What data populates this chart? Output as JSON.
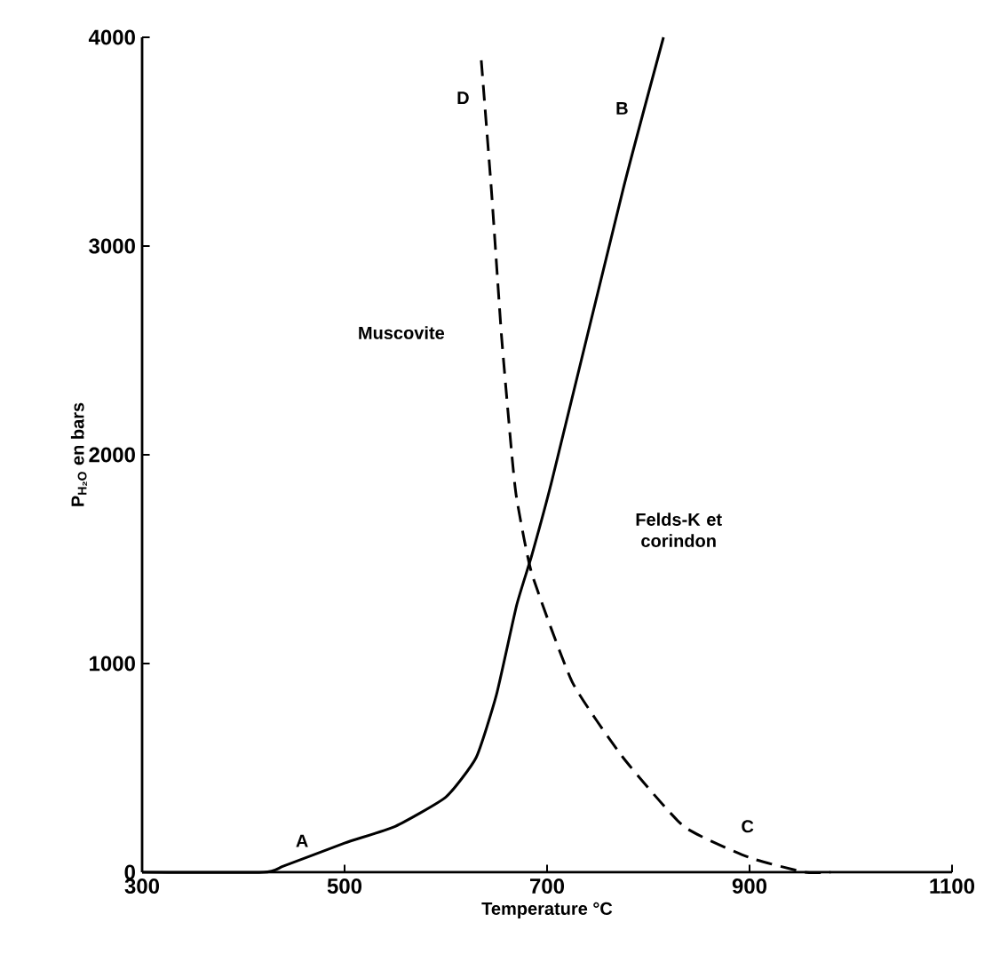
{
  "chart_data": {
    "type": "line",
    "xlabel": "Temperature °C",
    "ylabel": "P$_{H₂O}$ en bars",
    "xlim": [
      300,
      1100
    ],
    "ylim": [
      0,
      4000
    ],
    "xticks": [
      300,
      500,
      700,
      900,
      1100
    ],
    "yticks": [
      0,
      1000,
      2000,
      3000,
      4000
    ],
    "grid": false,
    "marker": "none",
    "series": [
      {
        "color": "#000000",
        "line_style": "solid",
        "x": [
          300,
          420,
          440,
          500,
          550,
          600,
          630,
          650,
          670,
          685,
          705,
          775,
          815
        ],
        "values": [
          0,
          0,
          30,
          140,
          220,
          360,
          550,
          850,
          1280,
          1520,
          1880,
          3270,
          4000
        ]
      },
      {
        "color": "#000000",
        "line_style": "dashed",
        "x": [
          635,
          645,
          655,
          665,
          670,
          685,
          725,
          775,
          835,
          900,
          955,
          980
        ],
        "values": [
          3890,
          3270,
          2570,
          2010,
          1790,
          1430,
          910,
          550,
          220,
          70,
          0,
          0
        ]
      }
    ],
    "annotations": [
      "A",
      "B",
      "C",
      "D",
      "Muscovite",
      "Felds-K et corindon"
    ]
  }
}
